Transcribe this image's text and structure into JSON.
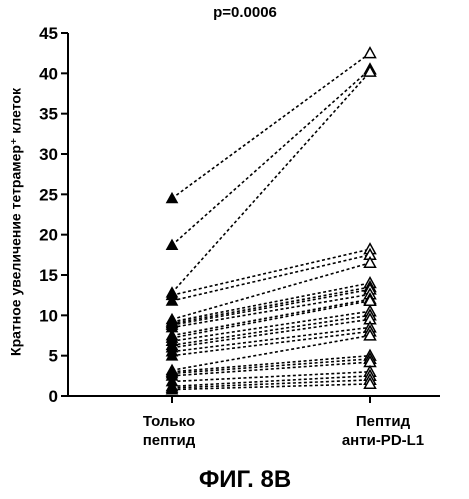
{
  "chart_data": {
    "type": "line",
    "annotation": "p=0.0006",
    "ylabel": "Кратное увеличение тетрамер⁺ клеток",
    "categories": [
      [
        "Только",
        "пептид"
      ],
      [
        "Пептид",
        "анти-PD-L1"
      ]
    ],
    "ylim": [
      0,
      45
    ],
    "yticks": [
      0,
      5,
      10,
      15,
      20,
      25,
      30,
      35,
      40,
      45
    ],
    "marker_left": "filled-triangle",
    "marker_right": "open-triangle",
    "pairs": [
      [
        24.5,
        42.5
      ],
      [
        18.7,
        40.5
      ],
      [
        12.8,
        40.2
      ],
      [
        12.5,
        18.2
      ],
      [
        11.8,
        17.5
      ],
      [
        9.5,
        16.5
      ],
      [
        9.2,
        14.0
      ],
      [
        9.0,
        13.5
      ],
      [
        8.8,
        13.2
      ],
      [
        8.5,
        12.6
      ],
      [
        7.5,
        12.0
      ],
      [
        7.2,
        11.8
      ],
      [
        6.8,
        10.5
      ],
      [
        6.3,
        10.0
      ],
      [
        6.0,
        9.5
      ],
      [
        5.5,
        8.5
      ],
      [
        5.0,
        8.0
      ],
      [
        3.2,
        7.5
      ],
      [
        3.0,
        5.0
      ],
      [
        2.8,
        4.6
      ],
      [
        2.5,
        4.2
      ],
      [
        1.8,
        3.0
      ],
      [
        1.2,
        2.5
      ],
      [
        1.0,
        2.0
      ],
      [
        0.8,
        1.5
      ]
    ]
  },
  "figure_caption": "ФИГ. 8B"
}
